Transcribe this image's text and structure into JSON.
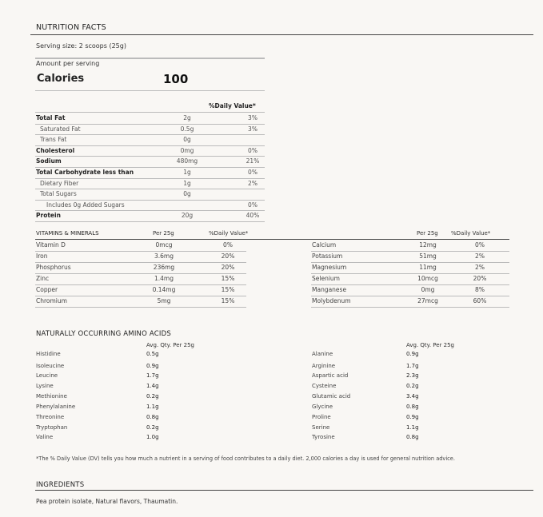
{
  "title": "NUTRITION FACTS",
  "serving_size": "Serving size: 2 scoops (25g)",
  "amount_per_serving": "Amount per serving",
  "calories_label": "Calories",
  "calories_value": "100",
  "dv_header": "%Daily Value*",
  "nutrients": [
    {
      "name": "Total Fat",
      "amount": "2g",
      "dv": "3%",
      "style": "b"
    },
    {
      "name": "Saturated Fat",
      "amount": "0.5g",
      "dv": "3%",
      "style": "i1"
    },
    {
      "name": "Trans Fat",
      "amount": "0g",
      "dv": "",
      "style": "i1"
    },
    {
      "name": "Cholesterol",
      "amount": "0mg",
      "dv": "0%",
      "style": "b"
    },
    {
      "name": "Sodium",
      "amount": "480mg",
      "dv": "21%",
      "style": "b"
    },
    {
      "name": "Total Carbohydrate less than",
      "amount": "1g",
      "dv": "0%",
      "style": "b"
    },
    {
      "name": "Dietary Fiber",
      "amount": "1g",
      "dv": "2%",
      "style": "i1"
    },
    {
      "name": "Total Sugars",
      "amount": "0g",
      "dv": "",
      "style": "i1"
    },
    {
      "name": "Includes 0g Added Sugars",
      "amount": "",
      "dv": "0%",
      "style": "i2"
    },
    {
      "name": "Protein",
      "amount": "20g",
      "dv": "40%",
      "style": "b"
    }
  ],
  "vitamins": {
    "title": "VITAMINS & MINERALS",
    "col_per": "Per 25g",
    "col_dv": "%Daily Value*",
    "left": [
      {
        "name": "Vitamin D",
        "amount": "0mcg",
        "dv": "0%"
      },
      {
        "name": "Iron",
        "amount": "3.6mg",
        "dv": "20%"
      },
      {
        "name": "Phosphorus",
        "amount": "236mg",
        "dv": "20%"
      },
      {
        "name": "Zinc",
        "amount": "1.4mg",
        "dv": "15%"
      },
      {
        "name": "Copper",
        "amount": "0.14mg",
        "dv": "15%"
      },
      {
        "name": "Chromium",
        "amount": "5mg",
        "dv": "15%"
      }
    ],
    "right": [
      {
        "name": "Calcium",
        "amount": "12mg",
        "dv": "0%"
      },
      {
        "name": "Potassium",
        "amount": "51mg",
        "dv": "2%"
      },
      {
        "name": "Magnesium",
        "amount": "11mg",
        "dv": "2%"
      },
      {
        "name": "Selenium",
        "amount": "10mcg",
        "dv": "20%"
      },
      {
        "name": "Manganese",
        "amount": "0mg",
        "dv": "8%"
      },
      {
        "name": "Molybdenum",
        "amount": "27mcg",
        "dv": "60%"
      }
    ]
  },
  "amino": {
    "title": "NATURALLY OCCURRING AMINO ACIDS",
    "col": "Avg. Qty. Per 25g",
    "left": [
      {
        "name": "Histidine",
        "amount": "0.5g"
      },
      {
        "name": "Isoleucine",
        "amount": "0.9g"
      },
      {
        "name": "Leucine",
        "amount": "1.7g"
      },
      {
        "name": "Lysine",
        "amount": "1.4g"
      },
      {
        "name": "Methionine",
        "amount": "0.2g"
      },
      {
        "name": "Phenylalanine",
        "amount": "1.1g"
      },
      {
        "name": "Threonine",
        "amount": "0.8g"
      },
      {
        "name": "Tryptophan",
        "amount": "0.2g"
      },
      {
        "name": "Valine",
        "amount": "1.0g"
      }
    ],
    "right": [
      {
        "name": "Alanine",
        "amount": "0.9g"
      },
      {
        "name": "Arginine",
        "amount": "1.7g"
      },
      {
        "name": "Aspartic acid",
        "amount": "2.3g"
      },
      {
        "name": "Cysteine",
        "amount": "0.2g"
      },
      {
        "name": "Glutamic acid",
        "amount": "3.4g"
      },
      {
        "name": "Glycine",
        "amount": "0.8g"
      },
      {
        "name": "Proline",
        "amount": "0.9g"
      },
      {
        "name": "Serine",
        "amount": "1.1g"
      },
      {
        "name": "Tyrosine",
        "amount": "0.8g"
      }
    ]
  },
  "footnote": "*The % Daily Value (DV) tells you how much a nutrient  in a serving of food contributes to a daily diet. 2,000 calories a day is used for general nutrition advice.",
  "ingredients_title": "INGREDIENTS",
  "ingredients": "Pea protein isolate, Natural flavors, Thaumatin."
}
